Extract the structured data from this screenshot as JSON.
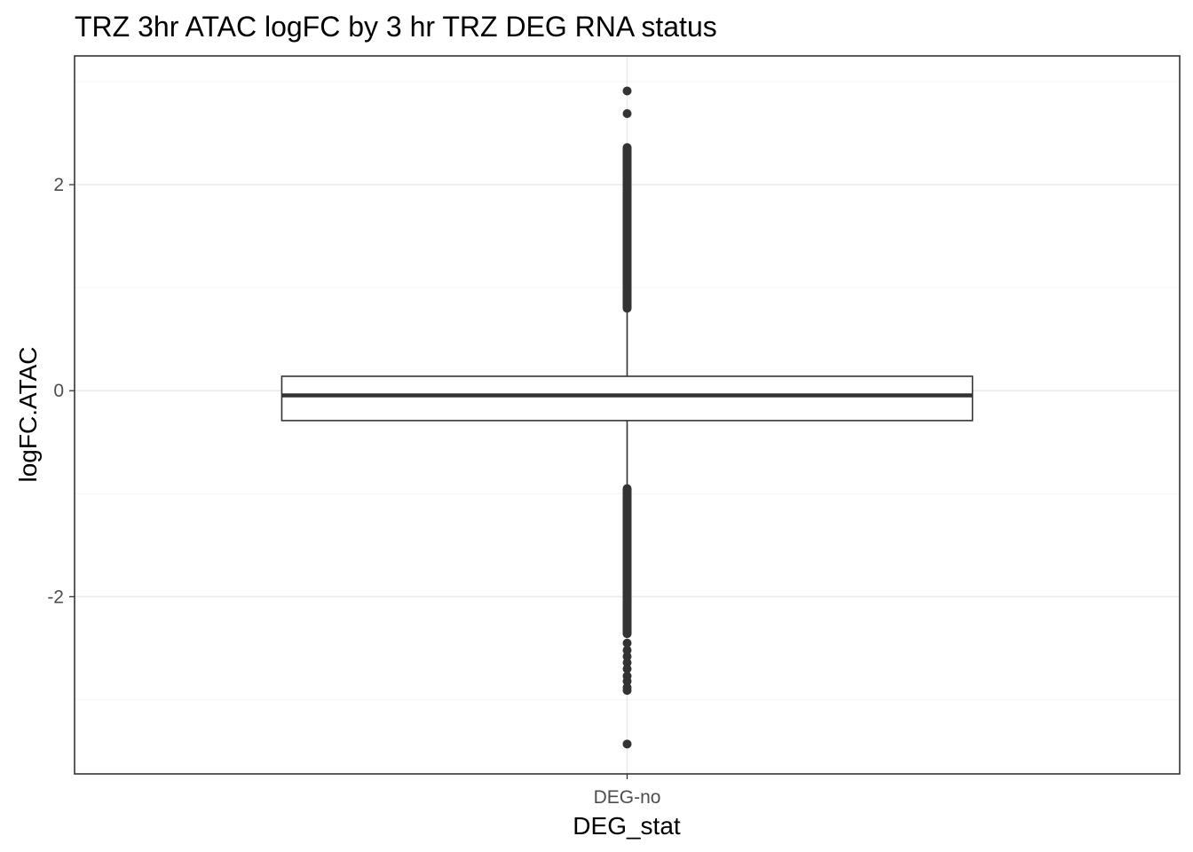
{
  "chart_data": {
    "type": "box",
    "title": "TRZ 3hr ATAC logFC by 3 hr TRZ DEG RNA status",
    "xlabel": "DEG_stat",
    "ylabel": "logFC.ATAC",
    "categories": [
      "DEG-no"
    ],
    "ylim": [
      -3.72,
      3.25
    ],
    "y_ticks": [
      -2,
      0,
      2
    ],
    "y_tick_labels": [
      "-2",
      "0",
      "2"
    ],
    "grid": true,
    "legend": "none",
    "boxes": [
      {
        "category": "DEG-no",
        "q1": -0.29,
        "median": -0.045,
        "q3": 0.14,
        "whisker_low": -0.93,
        "whisker_high": 0.79
      }
    ],
    "outlier_bands": [
      {
        "category": "DEG-no",
        "from": 0.8,
        "to": 2.36
      },
      {
        "category": "DEG-no",
        "from": -2.36,
        "to": -0.95
      }
    ],
    "outliers": [
      {
        "category": "DEG-no",
        "y": 2.91
      },
      {
        "category": "DEG-no",
        "y": 2.69
      },
      {
        "category": "DEG-no",
        "y": -2.45
      },
      {
        "category": "DEG-no",
        "y": -2.52
      },
      {
        "category": "DEG-no",
        "y": -2.58
      },
      {
        "category": "DEG-no",
        "y": -2.64
      },
      {
        "category": "DEG-no",
        "y": -2.7
      },
      {
        "category": "DEG-no",
        "y": -2.77
      },
      {
        "category": "DEG-no",
        "y": -2.82
      },
      {
        "category": "DEG-no",
        "y": -2.88
      },
      {
        "category": "DEG-no",
        "y": -2.91
      },
      {
        "category": "DEG-no",
        "y": -3.43
      }
    ],
    "colors": {
      "box_fill": "#ffffff",
      "box_stroke": "#333333",
      "point": "#333333",
      "grid_major": "#ebebeb",
      "grid_minor": "#f4f4f4",
      "panel_border": "#333333"
    }
  }
}
